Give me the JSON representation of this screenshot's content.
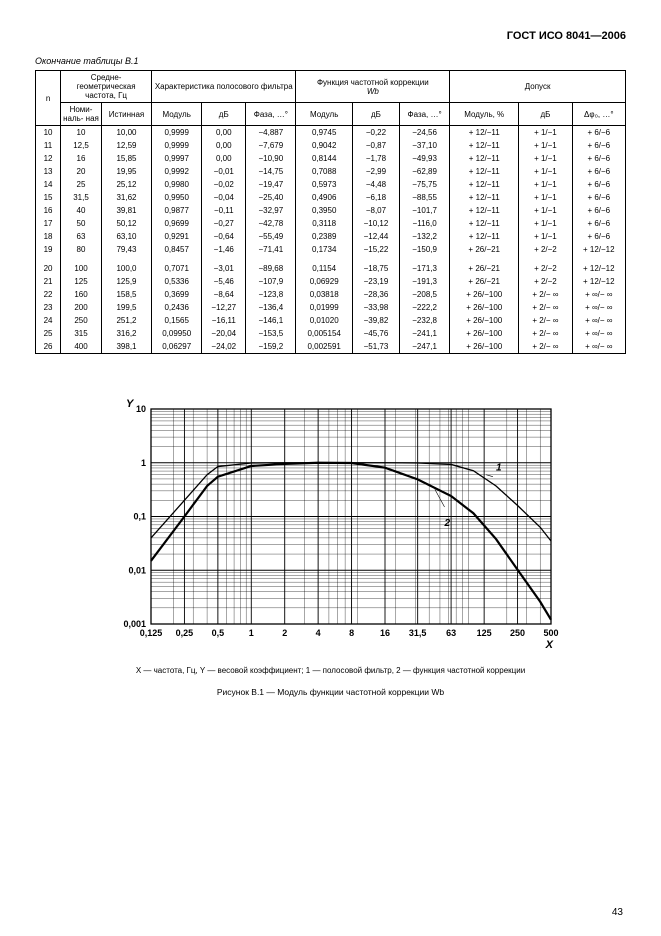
{
  "header": {
    "title": "ГОСТ ИСО 8041—2006"
  },
  "table": {
    "caption": "Окончание таблицы В.1",
    "head": {
      "n": "n",
      "geom_freq": "Средне-\nгеометрическая\nчастота, Гц",
      "bandpass": "Характеристика полосового\nфильтра",
      "weighting": "Функция частотной коррекции",
      "weighting_sym": "Wb",
      "tolerance": "Допуск",
      "nominal": "Номи-\nналь-\nная",
      "true": "Истинная",
      "modulus": "Модуль",
      "db": "дБ",
      "phase": "Фаза, …°",
      "modulus_pct": "Модуль, %",
      "dphi": "Δφ₀, …°"
    },
    "rows": [
      {
        "n": "10",
        "nom": "10",
        "tru": "10,00",
        "m1": "0,9999",
        "d1": "0,00",
        "p1": "−4,887",
        "m2": "0,9745",
        "d2": "−0,22",
        "p2": "−24,56",
        "tm": "+ 12/−11",
        "td": "+ 1/−1",
        "tp": "+ 6/−6"
      },
      {
        "n": "11",
        "nom": "12,5",
        "tru": "12,59",
        "m1": "0,9999",
        "d1": "0,00",
        "p1": "−7,679",
        "m2": "0,9042",
        "d2": "−0,87",
        "p2": "−37,10",
        "tm": "+ 12/−11",
        "td": "+ 1/−1",
        "tp": "+ 6/−6"
      },
      {
        "n": "12",
        "nom": "16",
        "tru": "15,85",
        "m1": "0,9997",
        "d1": "0,00",
        "p1": "−10,90",
        "m2": "0,8144",
        "d2": "−1,78",
        "p2": "−49,93",
        "tm": "+ 12/−11",
        "td": "+ 1/−1",
        "tp": "+ 6/−6"
      },
      {
        "n": "13",
        "nom": "20",
        "tru": "19,95",
        "m1": "0,9992",
        "d1": "−0,01",
        "p1": "−14,75",
        "m2": "0,7088",
        "d2": "−2,99",
        "p2": "−62,89",
        "tm": "+ 12/−11",
        "td": "+ 1/−1",
        "tp": "+ 6/−6"
      },
      {
        "n": "14",
        "nom": "25",
        "tru": "25,12",
        "m1": "0,9980",
        "d1": "−0,02",
        "p1": "−19,47",
        "m2": "0,5973",
        "d2": "−4,48",
        "p2": "−75,75",
        "tm": "+ 12/−11",
        "td": "+ 1/−1",
        "tp": "+ 6/−6"
      },
      {
        "n": "15",
        "nom": "31,5",
        "tru": "31,62",
        "m1": "0,9950",
        "d1": "−0,04",
        "p1": "−25,40",
        "m2": "0,4906",
        "d2": "−6,18",
        "p2": "−88,55",
        "tm": "+ 12/−11",
        "td": "+ 1/−1",
        "tp": "+ 6/−6"
      },
      {
        "n": "16",
        "nom": "40",
        "tru": "39,81",
        "m1": "0,9877",
        "d1": "−0,11",
        "p1": "−32,97",
        "m2": "0,3950",
        "d2": "−8,07",
        "p2": "−101,7",
        "tm": "+ 12/−11",
        "td": "+ 1/−1",
        "tp": "+ 6/−6"
      },
      {
        "n": "17",
        "nom": "50",
        "tru": "50,12",
        "m1": "0,9699",
        "d1": "−0,27",
        "p1": "−42,78",
        "m2": "0,3118",
        "d2": "−10,12",
        "p2": "−116,0",
        "tm": "+ 12/−11",
        "td": "+ 1/−1",
        "tp": "+ 6/−6"
      },
      {
        "n": "18",
        "nom": "63",
        "tru": "63,10",
        "m1": "0,9291",
        "d1": "−0,64",
        "p1": "−55,49",
        "m2": "0,2389",
        "d2": "−12,44",
        "p2": "−132,2",
        "tm": "+ 12/−11",
        "td": "+ 1/−1",
        "tp": "+ 6/−6"
      },
      {
        "n": "19",
        "nom": "80",
        "tru": "79,43",
        "m1": "0,8457",
        "d1": "−1,46",
        "p1": "−71,41",
        "m2": "0,1734",
        "d2": "−15,22",
        "p2": "−150,9",
        "tm": "+ 26/−21",
        "td": "+ 2/−2",
        "tp": "+ 12/−12"
      },
      {
        "n": "20",
        "nom": "100",
        "tru": "100,0",
        "m1": "0,7071",
        "d1": "−3,01",
        "p1": "−89,68",
        "m2": "0,1154",
        "d2": "−18,75",
        "p2": "−171,3",
        "tm": "+ 26/−21",
        "td": "+ 2/−2",
        "tp": "+ 12/−12"
      },
      {
        "n": "21",
        "nom": "125",
        "tru": "125,9",
        "m1": "0,5336",
        "d1": "−5,46",
        "p1": "−107,9",
        "m2": "0,06929",
        "d2": "−23,19",
        "p2": "−191,3",
        "tm": "+ 26/−21",
        "td": "+ 2/−2",
        "tp": "+ 12/−12"
      },
      {
        "n": "22",
        "nom": "160",
        "tru": "158,5",
        "m1": "0,3699",
        "d1": "−8,64",
        "p1": "−123,8",
        "m2": "0,03818",
        "d2": "−28,36",
        "p2": "−208,5",
        "tm": "+ 26/−100",
        "td": "+ 2/− ∞",
        "tp": "+ ∞/− ∞"
      },
      {
        "n": "23",
        "nom": "200",
        "tru": "199,5",
        "m1": "0,2436",
        "d1": "−12,27",
        "p1": "−136,4",
        "m2": "0,01999",
        "d2": "−33,98",
        "p2": "−222,2",
        "tm": "+ 26/−100",
        "td": "+ 2/− ∞",
        "tp": "+ ∞/− ∞"
      },
      {
        "n": "24",
        "nom": "250",
        "tru": "251,2",
        "m1": "0,1565",
        "d1": "−16,11",
        "p1": "−146,1",
        "m2": "0,01020",
        "d2": "−39,82",
        "p2": "−232,8",
        "tm": "+ 26/−100",
        "td": "+ 2/− ∞",
        "tp": "+ ∞/− ∞"
      },
      {
        "n": "25",
        "nom": "315",
        "tru": "316,2",
        "m1": "0,09950",
        "d1": "−20,04",
        "p1": "−153,5",
        "m2": "0,005154",
        "d2": "−45,76",
        "p2": "−241,1",
        "tm": "+ 26/−100",
        "td": "+ 2/− ∞",
        "tp": "+ ∞/− ∞"
      },
      {
        "n": "26",
        "nom": "400",
        "tru": "398,1",
        "m1": "0,06297",
        "d1": "−24,02",
        "p1": "−159,2",
        "m2": "0,002591",
        "d2": "−51,73",
        "p2": "−247,1",
        "tm": "+ 26/−100",
        "td": "+ 2/− ∞",
        "tp": "+ ∞/− ∞"
      }
    ]
  },
  "chart": {
    "type": "line-log",
    "y_label": "Y",
    "x_label": "X",
    "x_ticks": [
      "0,125",
      "0,25",
      "0,5",
      "1",
      "2",
      "4",
      "8",
      "16",
      "31,5",
      "63",
      "125",
      "250",
      "500"
    ],
    "y_ticks": [
      "0,001",
      "0,01",
      "0,1",
      "1",
      "10"
    ],
    "xlim": [
      0.125,
      500
    ],
    "ylim": [
      0.001,
      10
    ],
    "series": [
      {
        "name": "1",
        "label": "1",
        "color": "#000",
        "width": 1.3,
        "points": [
          [
            0.125,
            0.04
          ],
          [
            0.25,
            0.2
          ],
          [
            0.4,
            0.6
          ],
          [
            0.5,
            0.85
          ],
          [
            1,
            0.99
          ],
          [
            2,
            1.0
          ],
          [
            4,
            1.0
          ],
          [
            8,
            1.0
          ],
          [
            16,
            1.0
          ],
          [
            31.5,
            0.99
          ],
          [
            63,
            0.93
          ],
          [
            100,
            0.71
          ],
          [
            160,
            0.37
          ],
          [
            250,
            0.16
          ],
          [
            400,
            0.063
          ],
          [
            500,
            0.035
          ]
        ]
      },
      {
        "name": "2",
        "label": "2",
        "color": "#000",
        "width": 2.2,
        "points": [
          [
            0.125,
            0.015
          ],
          [
            0.25,
            0.1
          ],
          [
            0.4,
            0.37
          ],
          [
            0.5,
            0.55
          ],
          [
            1,
            0.87
          ],
          [
            2,
            0.95
          ],
          [
            4,
            1.0
          ],
          [
            8,
            0.99
          ],
          [
            16,
            0.81
          ],
          [
            31.5,
            0.49
          ],
          [
            63,
            0.24
          ],
          [
            100,
            0.115
          ],
          [
            160,
            0.038
          ],
          [
            250,
            0.0102
          ],
          [
            400,
            0.00259
          ],
          [
            500,
            0.0012
          ]
        ]
      }
    ],
    "grid_color": "#000",
    "background": "#fff",
    "caption": "X — частота, Гц, Y — весовой коэффициент; 1 — полосовой фильтр, 2 — функция частотной коррекции",
    "title": "Рисунок В.1 — Модуль функции частотной коррекции Wb"
  },
  "page": {
    "number": "43"
  }
}
